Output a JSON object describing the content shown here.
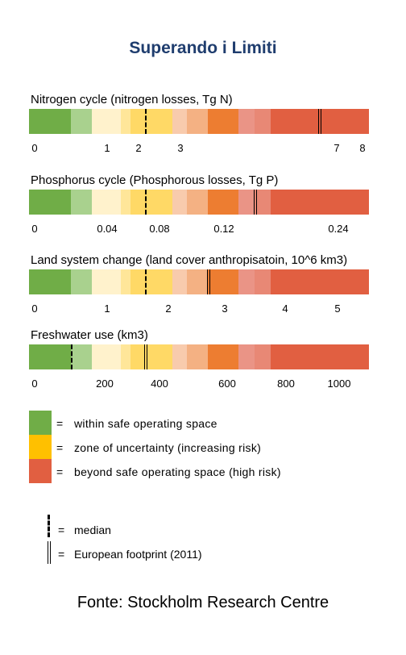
{
  "title": "Superando i Limiti",
  "source": "Fonte: Stockholm Research Centre",
  "colors": {
    "green": "#70ad47",
    "light_green": "#a9d18e",
    "pale_yellow": "#fff2cc",
    "yellow_light": "#ffe699",
    "yellow": "#ffd966",
    "peach": "#f8cbad",
    "light_orange": "#f4b183",
    "orange": "#ed7d31",
    "salmon": "#ea9486",
    "rose": "#e88875",
    "red": "#e15f41"
  },
  "chart_data": [
    {
      "type": "bar",
      "title": "Nitrogen cycle (nitrogen losses, Tg N)",
      "ticks": [
        {
          "label": "0",
          "value": 0
        },
        {
          "label": "1",
          "value": 1
        },
        {
          "label": "2",
          "value": 2
        },
        {
          "label": "3",
          "value": 3
        },
        {
          "label": "7",
          "value": 7
        },
        {
          "label": "8",
          "value": 8
        }
      ],
      "median": 2.1,
      "european_footprint": 6.3
    },
    {
      "type": "bar",
      "title": "Phosphorus cycle (Phosphorous losses, Tg P)",
      "ticks": [
        {
          "label": "0",
          "value": 0
        },
        {
          "label": "0.04",
          "value": 0.04
        },
        {
          "label": "0.08",
          "value": 0.08
        },
        {
          "label": "0.12",
          "value": 0.12
        },
        {
          "label": "0.24",
          "value": 0.24
        }
      ],
      "median": 0.07,
      "european_footprint": 0.14
    },
    {
      "type": "bar",
      "title": "Land system change (land cover anthropisatoin, 10^6 km3)",
      "ticks": [
        {
          "label": "0",
          "value": 0
        },
        {
          "label": "1",
          "value": 1
        },
        {
          "label": "2",
          "value": 2
        },
        {
          "label": "3",
          "value": 3
        },
        {
          "label": "4",
          "value": 4
        },
        {
          "label": "5",
          "value": 5
        }
      ],
      "median": 1.65,
      "european_footprint": 2.7
    },
    {
      "type": "bar",
      "title": "Freshwater use (km3)",
      "ticks": [
        {
          "label": "0",
          "value": 0
        },
        {
          "label": "200",
          "value": 200
        },
        {
          "label": "400",
          "value": 400
        },
        {
          "label": "600",
          "value": 600
        },
        {
          "label": "800",
          "value": 800
        },
        {
          "label": "1000",
          "value": 1000
        }
      ],
      "median": 110,
      "european_footprint": 340
    }
  ],
  "legend": [
    {
      "color": "#70ad47",
      "eq": "=",
      "text": "within safe operating space"
    },
    {
      "color": "#ffc000",
      "eq": "=",
      "text": "zone of uncertainty (increasing risk)"
    },
    {
      "color": "#e15f41",
      "eq": "=",
      "text": "beyond safe operating space (high risk)"
    }
  ],
  "key": [
    {
      "eq": "=",
      "text": "median"
    },
    {
      "eq": "=",
      "text": "European footprint (2011)"
    }
  ]
}
